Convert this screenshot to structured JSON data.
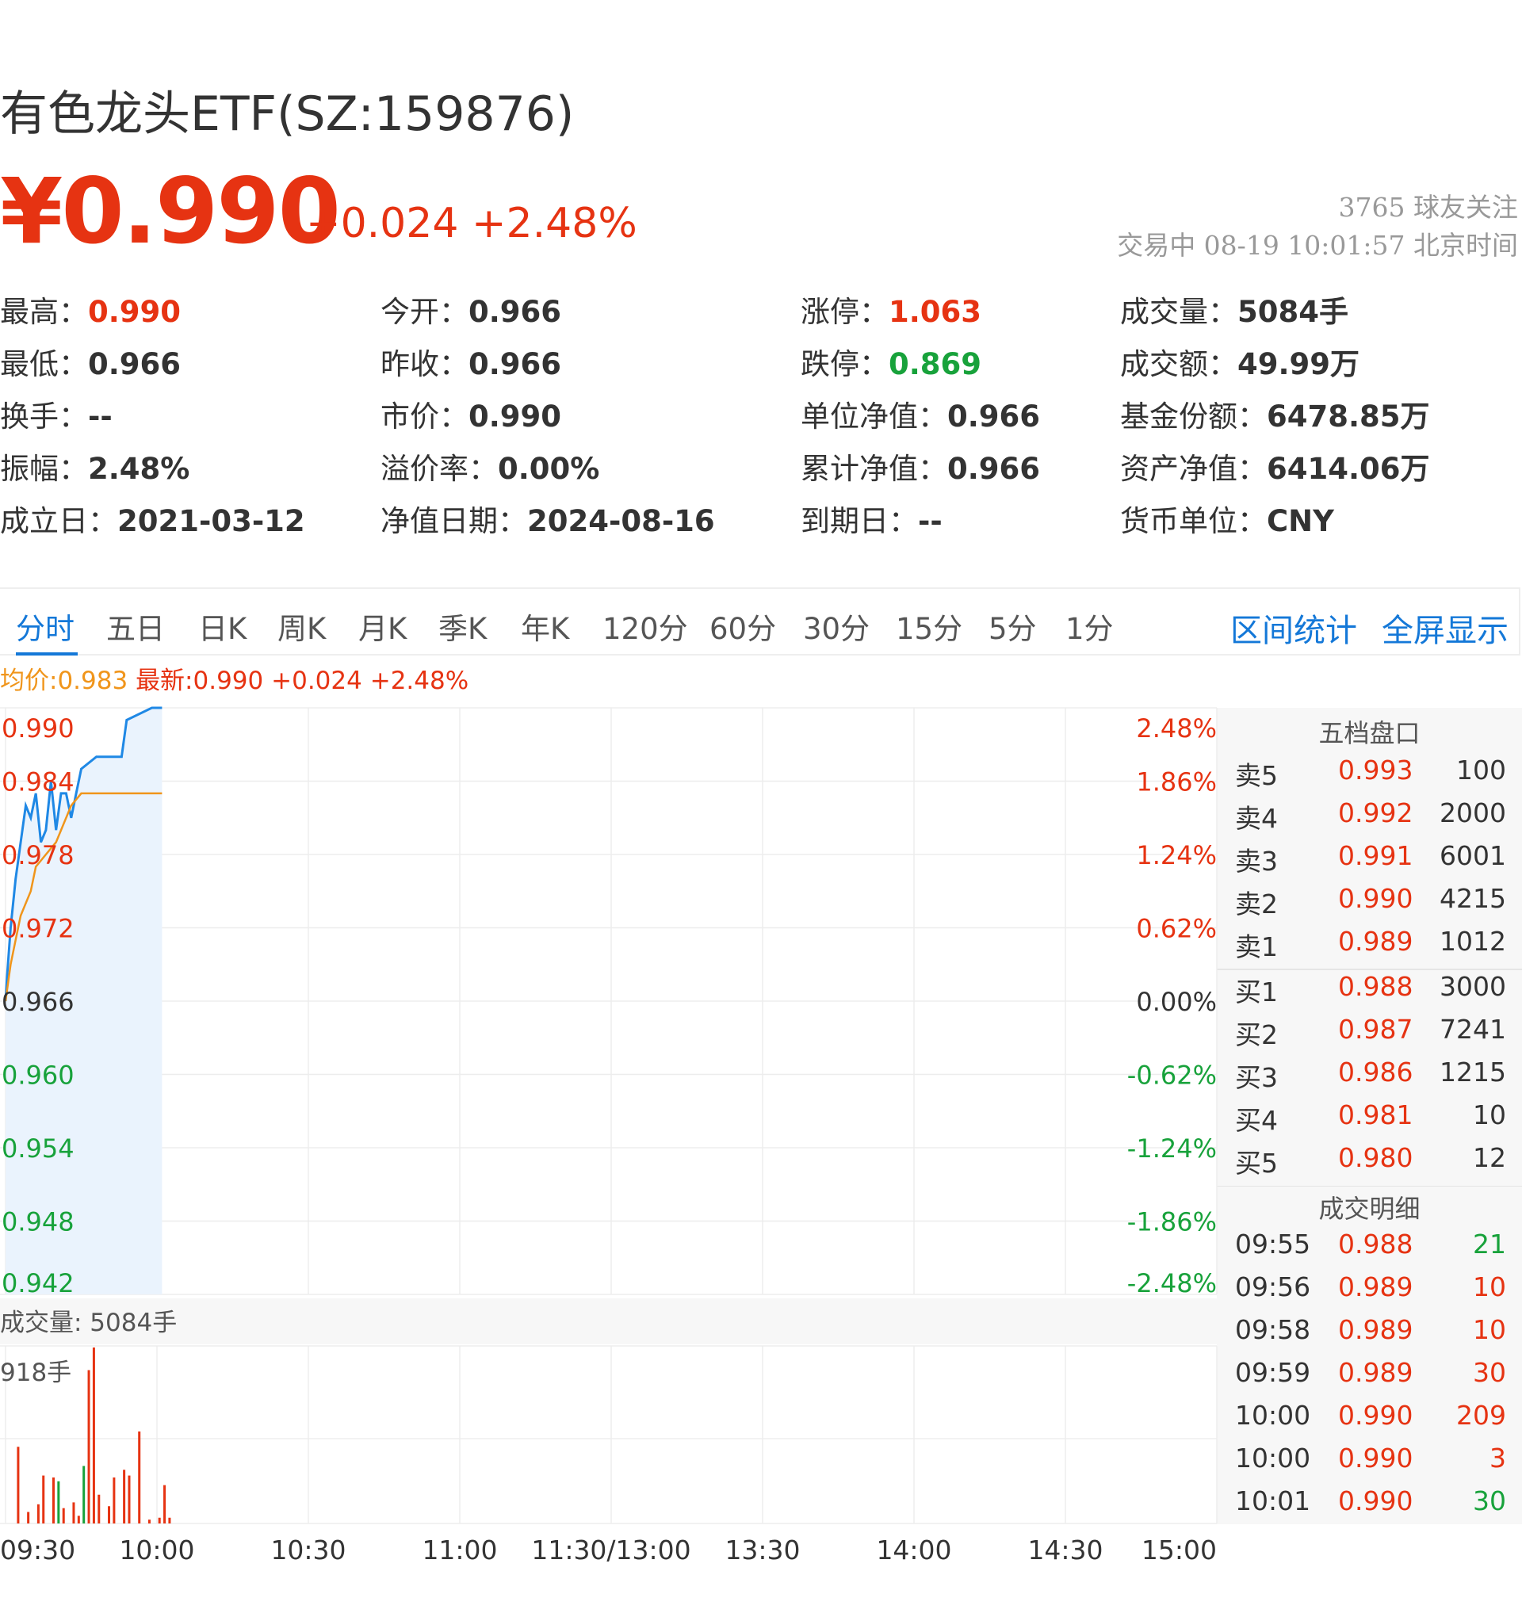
{
  "header": {
    "title": "有色龙头ETF(SZ:159876)",
    "price": "¥0.990",
    "change": "+0.024 +2.48%",
    "followers": "3765 球友关注",
    "status": "交易中 08-19 10:01:57 北京时间"
  },
  "quote": [
    {
      "label": "最高：",
      "value": "0.990",
      "color": "red"
    },
    {
      "label": "今开：",
      "value": "0.966",
      "color": ""
    },
    {
      "label": "涨停：",
      "value": "1.063",
      "color": "red"
    },
    {
      "label": "成交量：",
      "value": "5084手",
      "color": ""
    },
    {
      "label": "最低：",
      "value": "0.966",
      "color": ""
    },
    {
      "label": "昨收：",
      "value": "0.966",
      "color": ""
    },
    {
      "label": "跌停：",
      "value": "0.869",
      "color": "green"
    },
    {
      "label": "成交额：",
      "value": "49.99万",
      "color": ""
    },
    {
      "label": "换手：",
      "value": "--",
      "color": ""
    },
    {
      "label": "市价：",
      "value": "0.990",
      "color": ""
    },
    {
      "label": "单位净值：",
      "value": "0.966",
      "color": ""
    },
    {
      "label": "基金份额：",
      "value": "6478.85万",
      "color": ""
    },
    {
      "label": "振幅：",
      "value": "2.48%",
      "color": ""
    },
    {
      "label": "溢价率：",
      "value": "0.00%",
      "color": ""
    },
    {
      "label": "累计净值：",
      "value": "0.966",
      "color": ""
    },
    {
      "label": "资产净值：",
      "value": "6414.06万",
      "color": ""
    },
    {
      "label": "成立日：",
      "value": "2021-03-12",
      "color": ""
    },
    {
      "label": "净值日期：",
      "value": "2024-08-16",
      "color": ""
    },
    {
      "label": "到期日：",
      "value": "--",
      "color": ""
    },
    {
      "label": "货币单位：",
      "value": "CNY",
      "color": ""
    }
  ],
  "tabs": [
    "分时",
    "五日",
    "日K",
    "周K",
    "月K",
    "季K",
    "年K",
    "120分",
    "60分",
    "30分",
    "15分",
    "5分",
    "1分"
  ],
  "active_tab": "分时",
  "tab_actions": [
    "区间统计",
    "全屏显示"
  ],
  "avg_line": {
    "avg": "均价:0.983",
    "latest": "最新:0.990",
    "change": "+0.024",
    "pct": "+2.48%"
  },
  "chart_data": {
    "type": "line",
    "y_left_ticks": [
      "0.990",
      "0.984",
      "0.978",
      "0.972",
      "0.966",
      "0.960",
      "0.954",
      "0.948",
      "0.942"
    ],
    "y_right_ticks": [
      "2.48%",
      "1.86%",
      "1.24%",
      "0.62%",
      "0.00%",
      "-0.62%",
      "-1.24%",
      "-1.86%",
      "-2.48%"
    ],
    "x_ticks": [
      "09:30",
      "10:00",
      "10:30",
      "11:00",
      "11:30/13:00",
      "13:30",
      "14:00",
      "14:30",
      "15:00"
    ],
    "ylim": [
      0.942,
      0.99
    ],
    "prev_close": 0.966,
    "series": [
      {
        "values": [
          [
            0,
            0.966
          ],
          [
            0.3,
            0.968
          ],
          [
            1,
            0.972
          ],
          [
            2,
            0.976
          ],
          [
            3,
            0.979
          ],
          [
            4,
            0.982
          ],
          [
            5,
            0.981
          ],
          [
            6,
            0.983
          ],
          [
            7,
            0.979
          ],
          [
            8,
            0.98
          ],
          [
            9,
            0.984
          ],
          [
            10,
            0.98
          ],
          [
            11,
            0.983
          ],
          [
            12,
            0.983
          ],
          [
            13,
            0.981
          ],
          [
            14,
            0.983
          ],
          [
            15,
            0.985
          ],
          [
            18,
            0.986
          ],
          [
            23,
            0.986
          ],
          [
            24,
            0.989
          ],
          [
            29,
            0.99
          ],
          [
            31,
            0.99
          ]
        ]
      },
      {
        "values": [
          [
            0,
            0.966
          ],
          [
            1,
            0.969
          ],
          [
            2,
            0.971
          ],
          [
            3,
            0.973
          ],
          [
            5,
            0.975
          ],
          [
            6,
            0.977
          ],
          [
            8,
            0.978
          ],
          [
            10,
            0.979
          ],
          [
            13,
            0.982
          ],
          [
            15,
            0.983
          ],
          [
            24,
            0.983
          ],
          [
            25,
            0.983
          ],
          [
            31,
            0.983
          ]
        ]
      }
    ],
    "volume": {
      "label": "成交量: 5084手",
      "max_label": "918手",
      "ymax": 918,
      "bars": [
        {
          "t": 1,
          "v": 400,
          "c": "r"
        },
        {
          "t": 3,
          "v": 60,
          "c": "r"
        },
        {
          "t": 5,
          "v": 100,
          "c": "r"
        },
        {
          "t": 6,
          "v": 250,
          "c": "r"
        },
        {
          "t": 8,
          "v": 240,
          "c": "r"
        },
        {
          "t": 9,
          "v": 220,
          "c": "g"
        },
        {
          "t": 10,
          "v": 80,
          "c": "r"
        },
        {
          "t": 12,
          "v": 110,
          "c": "r"
        },
        {
          "t": 13,
          "v": 40,
          "c": "r"
        },
        {
          "t": 14,
          "v": 300,
          "c": "g"
        },
        {
          "t": 15,
          "v": 800,
          "c": "r"
        },
        {
          "t": 16,
          "v": 918,
          "c": "r"
        },
        {
          "t": 17,
          "v": 150,
          "c": "r"
        },
        {
          "t": 19,
          "v": 90,
          "c": "r"
        },
        {
          "t": 20,
          "v": 240,
          "c": "r"
        },
        {
          "t": 22,
          "v": 280,
          "c": "r"
        },
        {
          "t": 23,
          "v": 250,
          "c": "r"
        },
        {
          "t": 25,
          "v": 480,
          "c": "r"
        },
        {
          "t": 27,
          "v": 20,
          "c": "r"
        },
        {
          "t": 29,
          "v": 30,
          "c": "r"
        },
        {
          "t": 30,
          "v": 200,
          "c": "r"
        },
        {
          "t": 31,
          "v": 30,
          "c": "r"
        }
      ]
    }
  },
  "orderbook": {
    "title": "五档盘口",
    "asks": [
      {
        "label": "卖5",
        "price": "0.993",
        "qty": "100"
      },
      {
        "label": "卖4",
        "price": "0.992",
        "qty": "2000"
      },
      {
        "label": "卖3",
        "price": "0.991",
        "qty": "6001"
      },
      {
        "label": "卖2",
        "price": "0.990",
        "qty": "4215"
      },
      {
        "label": "卖1",
        "price": "0.989",
        "qty": "1012"
      }
    ],
    "bids": [
      {
        "label": "买1",
        "price": "0.988",
        "qty": "3000"
      },
      {
        "label": "买2",
        "price": "0.987",
        "qty": "7241"
      },
      {
        "label": "买3",
        "price": "0.986",
        "qty": "1215"
      },
      {
        "label": "买4",
        "price": "0.981",
        "qty": "10"
      },
      {
        "label": "买5",
        "price": "0.980",
        "qty": "12"
      }
    ]
  },
  "trades": {
    "title": "成交明细",
    "rows": [
      {
        "time": "09:55",
        "price": "0.988",
        "qty": "21",
        "color": "green"
      },
      {
        "time": "09:56",
        "price": "0.989",
        "qty": "10",
        "color": "red"
      },
      {
        "time": "09:58",
        "price": "0.989",
        "qty": "10",
        "color": "red"
      },
      {
        "time": "09:59",
        "price": "0.989",
        "qty": "30",
        "color": "red"
      },
      {
        "time": "10:00",
        "price": "0.990",
        "qty": "209",
        "color": "red"
      },
      {
        "time": "10:00",
        "price": "0.990",
        "qty": "3",
        "color": "red"
      },
      {
        "time": "10:01",
        "price": "0.990",
        "qty": "30",
        "color": "green"
      }
    ]
  },
  "colors": {
    "up": "#e63312",
    "down": "#18a23b",
    "price_line": "#1f88e5",
    "avg_line": "#f0951b",
    "accent": "#1478d8"
  }
}
